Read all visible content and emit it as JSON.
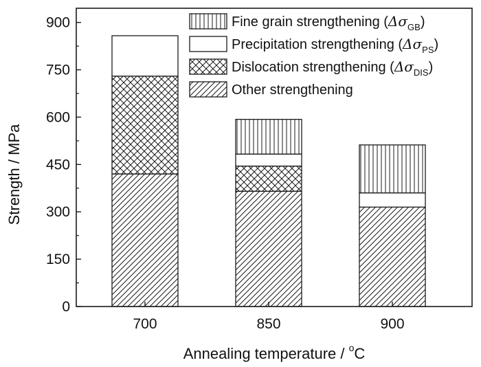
{
  "chart_data": {
    "type": "bar",
    "stacked": true,
    "categories": [
      "700",
      "850",
      "900"
    ],
    "series": [
      {
        "name": "Other strengthening",
        "values": [
          420,
          365,
          315
        ],
        "pattern": "diagonal"
      },
      {
        "name": "Dislocation strengthening",
        "symbol": "Δσ",
        "subscript": "DIS",
        "values": [
          310,
          80,
          0
        ],
        "pattern": "crosshatch"
      },
      {
        "name": "Precipitation strengthening",
        "symbol": "Δσ",
        "subscript": "PS",
        "values": [
          128,
          38,
          45
        ],
        "pattern": "none"
      },
      {
        "name": "Fine grain strengthening",
        "symbol": "Δσ",
        "subscript": "GB",
        "values": [
          0,
          110,
          152
        ],
        "pattern": "vertical"
      }
    ],
    "xlabel": "Annealing temperature / ",
    "xlabel_unit_sup": "o",
    "xlabel_unit": "C",
    "ylabel": "Strength / MPa",
    "ylim": [
      0,
      945
    ],
    "yticks": [
      0,
      150,
      300,
      450,
      600,
      750,
      900
    ],
    "grid": false,
    "legend_position": "top-right",
    "colors": {
      "stroke": "#1a1a1a",
      "fill": "#ffffff"
    }
  }
}
